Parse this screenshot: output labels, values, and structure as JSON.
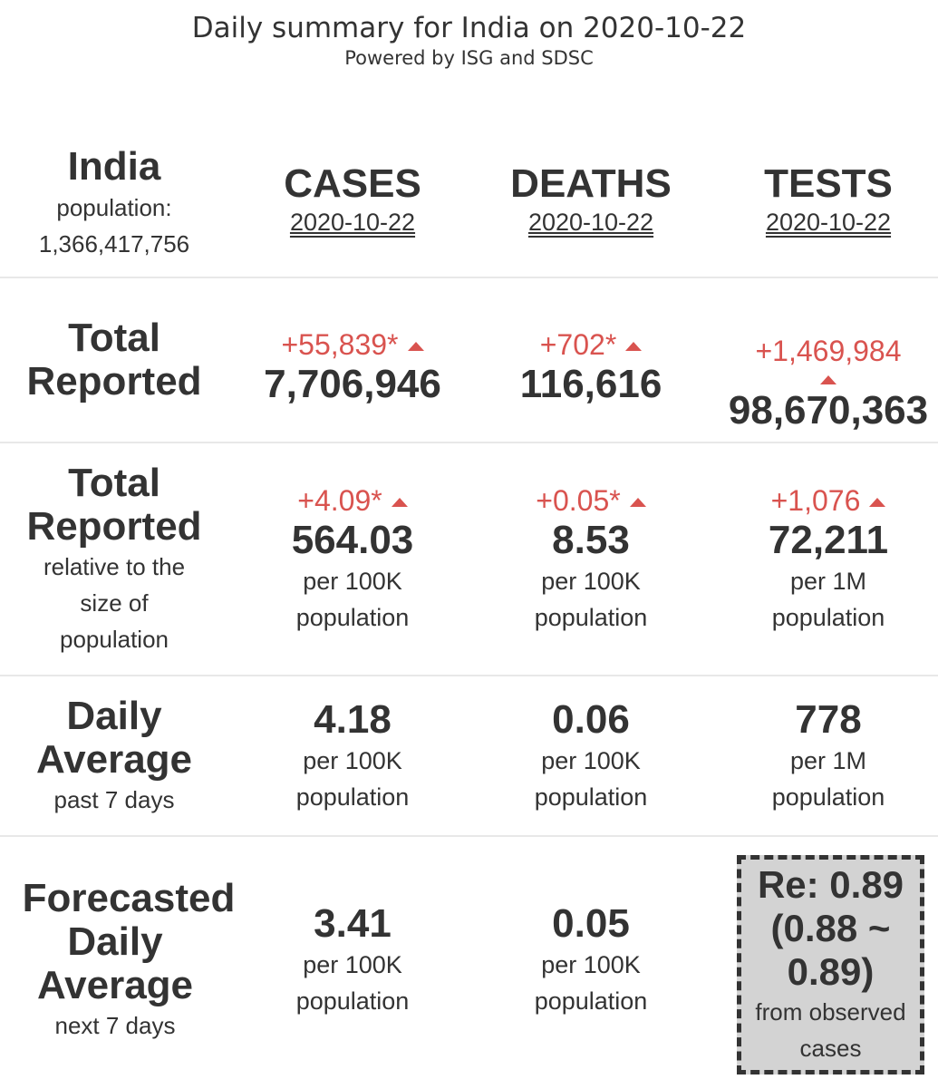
{
  "header": {
    "title": "Daily summary for India on 2020-10-22",
    "subtitle": "Powered by ISG and SDSC"
  },
  "location": {
    "name": "India",
    "population_label": "population:",
    "population": "1,366,417,756"
  },
  "columns": [
    {
      "label": "CASES",
      "date": "2020-10-22"
    },
    {
      "label": "DEATHS",
      "date": "2020-10-22"
    },
    {
      "label": "TESTS",
      "date": "2020-10-22"
    }
  ],
  "total_reported": {
    "label_line1": "Total",
    "label_line2": "Reported",
    "cases": {
      "delta": "+55,839*",
      "value": "7,706,946"
    },
    "deaths": {
      "delta": "+702*",
      "value": "116,616"
    },
    "tests": {
      "delta": "+1,469,984",
      "value": "98,670,363"
    }
  },
  "relative": {
    "label_line1": "Total",
    "label_line2": "Reported",
    "sub_line1": "relative to the",
    "sub_line2": "size of",
    "sub_line3": "population",
    "cases": {
      "delta": "+4.09*",
      "value": "564.03",
      "unit_line1": "per 100K",
      "unit_line2": "population"
    },
    "deaths": {
      "delta": "+0.05*",
      "value": "8.53",
      "unit_line1": "per 100K",
      "unit_line2": "population"
    },
    "tests": {
      "delta": "+1,076",
      "value": "72,211",
      "unit_line1": "per 1M",
      "unit_line2": "population"
    }
  },
  "daily_average": {
    "label_line1": "Daily",
    "label_line2": "Average",
    "sub": "past 7 days",
    "cases": {
      "value": "4.18",
      "unit_line1": "per 100K",
      "unit_line2": "population"
    },
    "deaths": {
      "value": "0.06",
      "unit_line1": "per 100K",
      "unit_line2": "population"
    },
    "tests": {
      "value": "778",
      "unit_line1": "per 1M",
      "unit_line2": "population"
    }
  },
  "forecast": {
    "label_line1": "Forecasted",
    "label_line2": "Daily",
    "label_line3": "Average",
    "sub": "next 7 days",
    "cases": {
      "value": "3.41",
      "unit_line1": "per 100K",
      "unit_line2": "population"
    },
    "deaths": {
      "value": "0.05",
      "unit_line1": "per 100K",
      "unit_line2": "population"
    },
    "re": {
      "line1": "Re: 0.89",
      "line2": "(0.88 ~",
      "line3": "0.89)",
      "sub_line1": "from observed",
      "sub_line2": "cases"
    }
  },
  "colors": {
    "text": "#333333",
    "delta": "#d9534f",
    "re_box_bg": "#d3d3d3",
    "divider": "#e8e8e8"
  }
}
